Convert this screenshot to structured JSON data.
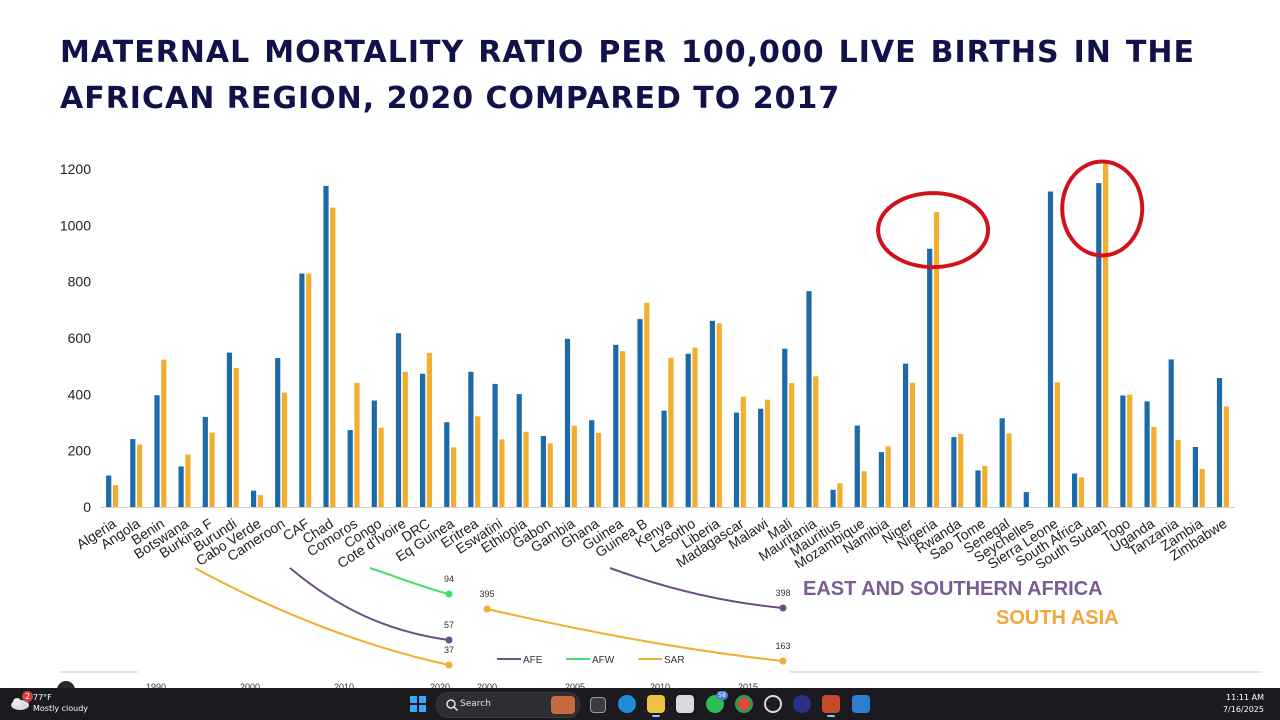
{
  "slide": {
    "title": "MATERNAL MORTALITY RATIO PER 100,000 LIVE BIRTHS IN THE AFRICAN REGION, 2020 COMPARED TO 2017"
  },
  "chart_data": [
    {
      "type": "bar",
      "title": "",
      "categories": [
        "Algeria",
        "Angola",
        "Benin",
        "Botswana",
        "Burkina F",
        "Burundi",
        "Cabo Verde",
        "Cameroon",
        "CAF",
        "Chad",
        "Comoros",
        "Congo",
        "Cote d'Ivoire",
        "DRC",
        "Eq Guinea",
        "Eritrea",
        "Eswatini",
        "Ethiopia",
        "Gabon",
        "Gambia",
        "Ghana",
        "Guinea",
        "Guinea B",
        "Kenya",
        "Lesotho",
        "Liberia",
        "Madagascar",
        "Malawi",
        "Mali",
        "Mauritania",
        "Mauritius",
        "Mozambique",
        "Namibia",
        "Niger",
        "Nigeria",
        "Rwanda",
        "Sao Tome",
        "Senegal",
        "Seychelles",
        "Sierra Leone",
        "South Africa",
        "South Sudan",
        "Togo",
        "Uganda",
        "Tanzania",
        "Zambia",
        "Zimbabwe"
      ],
      "series": [
        {
          "values": [
            112,
            241,
            397,
            144,
            320,
            548,
            58,
            529,
            829,
            1140,
            273,
            378,
            617,
            473,
            301,
            480,
            437,
            401,
            252,
            597,
            308,
            576,
            667,
            342,
            544,
            661,
            335,
            349,
            562,
            766,
            61,
            289,
            195,
            509,
            917,
            248,
            130,
            315,
            53,
            1120,
            119,
            1150,
            396,
            375,
            524,
            213,
            458
          ]
        },
        {
          "values": [
            78,
            222,
            523,
            186,
            264,
            494,
            42,
            406,
            829,
            1063,
            441,
            282,
            480,
            547,
            212,
            322,
            240,
            267,
            226,
            289,
            263,
            553,
            725,
            530,
            566,
            652,
            392,
            381,
            440,
            464,
            84,
            127,
            215,
            441,
            1047,
            259,
            146,
            261,
            null,
            443,
            105,
            1223,
            399,
            284,
            238,
            135,
            357
          ]
        }
      ],
      "colors": [
        "#1c6aa8",
        "#f2ae2e"
      ],
      "ylim": [
        0,
        1250
      ],
      "yticks": [
        0,
        200,
        400,
        600,
        800,
        1000,
        1200
      ],
      "grid": false,
      "highlighted": [
        "Nigeria",
        "South Sudan"
      ]
    },
    {
      "type": "line",
      "title": "",
      "note": "partially visible overlay from another slide",
      "left_panel": {
        "x_ticks": [
          "1990",
          "2000",
          "2010",
          "2020"
        ],
        "end_labels": [
          "94",
          "57",
          "37"
        ]
      },
      "right_panel": {
        "x_ticks": [
          "2000",
          "2005",
          "2010",
          "2015"
        ],
        "labels": [
          "395",
          "163",
          "398"
        ]
      },
      "legend": [
        "AFE",
        "AFW",
        "SAR"
      ],
      "colors": {
        "AFE": "#6b4f86",
        "AFW": "#3fe06a",
        "SAR": "#f2ae2e"
      }
    }
  ],
  "overlay_legend": {
    "afe": "EAST AND SOUTHERN AFRICA",
    "sar": "SOUTH ASIA"
  },
  "taskbar": {
    "weather_temp": "77°F",
    "weather_cond": "Mostly cloudy",
    "weather_badge": "2",
    "search_label": "Search",
    "whatsapp_badge": "58",
    "time": "11:11 AM",
    "date": "7/16/2025"
  }
}
